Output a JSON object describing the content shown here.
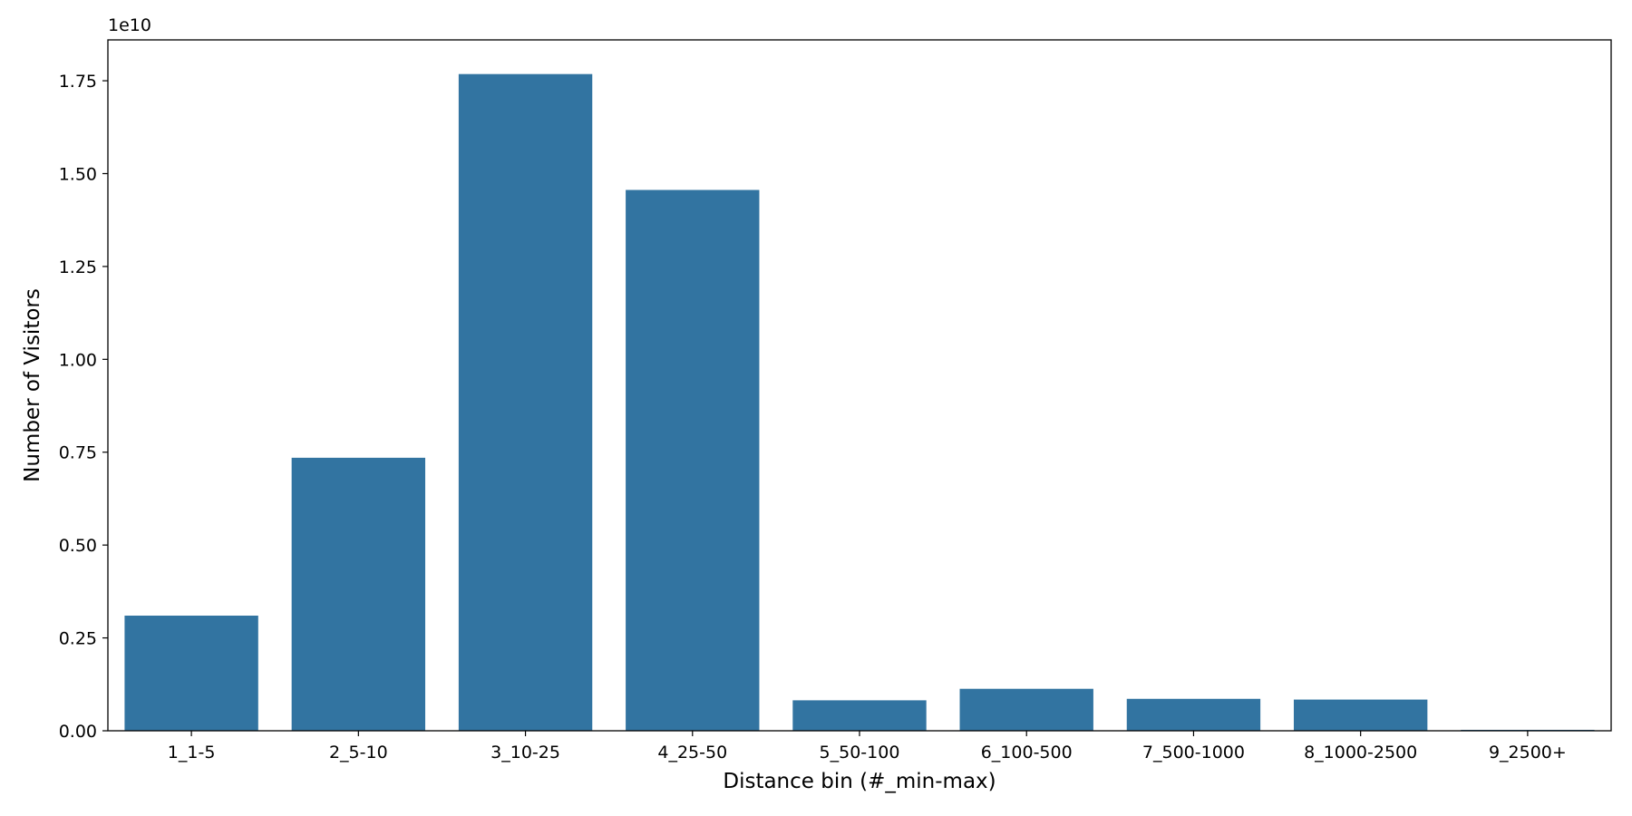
{
  "chart_data": {
    "type": "bar",
    "title": "",
    "xlabel": "Distance bin (#_min-max)",
    "ylabel": "Number of Visitors",
    "y_offset_label": "1e10",
    "categories": [
      "1_1-5",
      "2_5-10",
      "3_10-25",
      "4_25-50",
      "5_50-100",
      "6_100-500",
      "7_500-1000",
      "8_1000-2500",
      "9_2500+"
    ],
    "series": [
      {
        "values": [
          3100000000,
          7350000000,
          17680000000,
          14560000000,
          820000000,
          1130000000,
          860000000,
          840000000,
          25000000
        ],
        "color": "#3274a1"
      }
    ],
    "ylim": [
      0,
      18600000000
    ],
    "yticks": [
      0,
      2500000000,
      5000000000,
      7500000000,
      10000000000,
      12500000000,
      15000000000,
      17500000000
    ],
    "ytick_labels": [
      "0.00",
      "0.25",
      "0.50",
      "0.75",
      "1.00",
      "1.25",
      "1.50",
      "1.75"
    ],
    "grid": false,
    "legend": "none"
  }
}
